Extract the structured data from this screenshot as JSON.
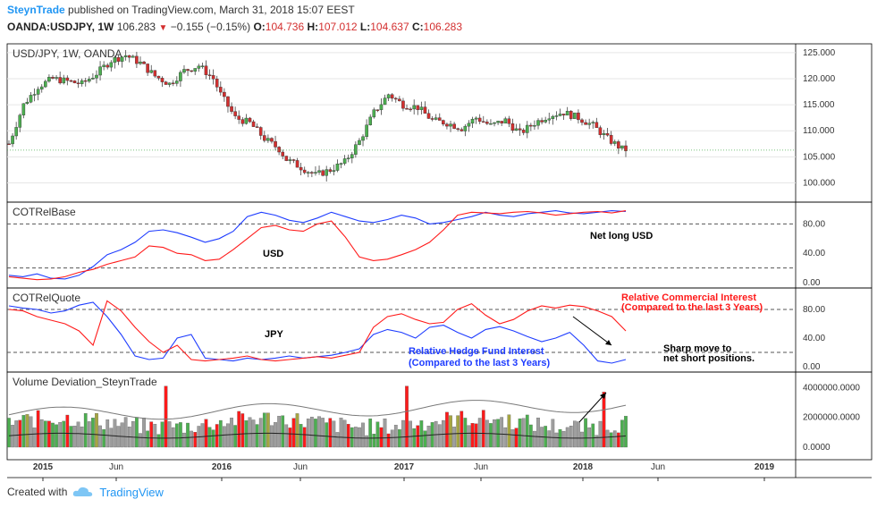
{
  "header": {
    "author": "SteynTrade",
    "published": "published on TradingView.com, March 31, 2018 15:07 EEST",
    "symbol": "OANDA:USDJPY, 1W",
    "last": "106.283",
    "change_arrow": "▼",
    "change": "−0.155 (−0.15%)",
    "o_label": "O:",
    "o_val": "104.736",
    "h_label": "H:",
    "h_val": "107.012",
    "l_label": "L:",
    "l_val": "104.637",
    "c_label": "C:",
    "c_val": "106.283"
  },
  "footer": {
    "created_with": "Created with",
    "brand": "TradingView"
  },
  "colors": {
    "up": "#4caf50",
    "down": "#d32f2f",
    "line_blue": "#1e3cff",
    "line_red": "#ff1a1a",
    "grey": "#9e9e9e",
    "olive": "#a6a641",
    "grid": "#e6e6e6"
  },
  "chart_data": [
    {
      "type": "candlestick",
      "title": "USD/JPY, 1W, OANDA",
      "ylim": [
        97,
        126
      ],
      "y_ticks": [
        "125.000",
        "120.000",
        "115.000",
        "110.000",
        "105.000",
        "100.000"
      ],
      "x_labels": [
        "2015",
        "Jun",
        "2016",
        "Jun",
        "2017",
        "Jun",
        "2018",
        "Jun",
        "2019"
      ],
      "close_path": [
        [
          0,
          107.5
        ],
        [
          4,
          115.0
        ],
        [
          8,
          118.5
        ],
        [
          12,
          120.0
        ],
        [
          16,
          119.5
        ],
        [
          20,
          119.0
        ],
        [
          24,
          121.0
        ],
        [
          28,
          123.5
        ],
        [
          32,
          124.5
        ],
        [
          36,
          123.0
        ],
        [
          40,
          120.5
        ],
        [
          44,
          119.0
        ],
        [
          48,
          121.5
        ],
        [
          52,
          122.5
        ],
        [
          56,
          120.0
        ],
        [
          58,
          117.0
        ],
        [
          62,
          112.5
        ],
        [
          66,
          111.5
        ],
        [
          70,
          108.5
        ],
        [
          74,
          106.5
        ],
        [
          76,
          104.5
        ],
        [
          80,
          103.0
        ],
        [
          84,
          101.5
        ],
        [
          88,
          102.5
        ],
        [
          92,
          104.0
        ],
        [
          96,
          108.0
        ],
        [
          100,
          113.5
        ],
        [
          104,
          117.0
        ],
        [
          108,
          115.0
        ],
        [
          112,
          114.5
        ],
        [
          116,
          112.0
        ],
        [
          120,
          111.5
        ],
        [
          124,
          110.5
        ],
        [
          128,
          112.5
        ],
        [
          132,
          111.0
        ],
        [
          136,
          112.0
        ],
        [
          140,
          109.5
        ],
        [
          144,
          111.5
        ],
        [
          148,
          113.0
        ],
        [
          152,
          113.5
        ],
        [
          156,
          112.5
        ],
        [
          160,
          111.0
        ],
        [
          164,
          108.5
        ],
        [
          168,
          106.5
        ],
        [
          170,
          106.3
        ]
      ]
    },
    {
      "type": "line",
      "title": "COTRelBase",
      "ylim": [
        0,
        100
      ],
      "y_ticks": [
        "80.00",
        "40.00",
        "0.00"
      ],
      "hlines": [
        80,
        20
      ],
      "annotations": [
        "USD",
        "Net long USD"
      ],
      "series": [
        {
          "values": [
            10,
            8,
            12,
            6,
            5,
            10,
            22,
            38,
            45,
            55,
            70,
            72,
            68,
            62,
            55,
            60,
            70,
            90,
            96,
            92,
            85,
            82,
            88,
            96,
            90,
            84,
            82,
            86,
            92,
            88,
            80,
            82,
            86,
            90,
            96,
            92,
            90,
            94,
            96,
            98,
            95,
            94,
            96,
            98,
            97
          ]
        },
        {
          "values": [
            8,
            6,
            4,
            5,
            8,
            14,
            18,
            25,
            30,
            35,
            50,
            48,
            40,
            38,
            30,
            32,
            45,
            60,
            75,
            78,
            72,
            70,
            80,
            84,
            62,
            35,
            30,
            32,
            38,
            45,
            55,
            72,
            92,
            96,
            95,
            94,
            96,
            97,
            95,
            92,
            94,
            96,
            97,
            95,
            98
          ]
        }
      ]
    },
    {
      "type": "line",
      "title": "COTRelQuote",
      "ylim": [
        0,
        100
      ],
      "y_ticks": [
        "80.00",
        "40.00",
        "0.00"
      ],
      "hlines": [
        80,
        20
      ],
      "annotations": [
        "JPY",
        "Relative Commercial Interest",
        "(Compared to the last 3 Years)",
        "Relative Hedge Fund Interest",
        "(Compared to the last 3 Years)",
        "Sharp move to",
        "net short positions."
      ],
      "series": [
        {
          "values": [
            85,
            82,
            80,
            75,
            78,
            86,
            90,
            70,
            45,
            15,
            10,
            12,
            40,
            45,
            12,
            10,
            8,
            12,
            10,
            12,
            15,
            12,
            14,
            16,
            20,
            25,
            45,
            52,
            48,
            40,
            55,
            58,
            48,
            40,
            52,
            56,
            50,
            42,
            35,
            40,
            48,
            30,
            8,
            5,
            10
          ]
        },
        {
          "values": [
            80,
            78,
            70,
            65,
            60,
            50,
            30,
            92,
            78,
            55,
            35,
            20,
            30,
            10,
            8,
            10,
            12,
            15,
            10,
            8,
            10,
            12,
            14,
            12,
            16,
            20,
            55,
            70,
            74,
            66,
            60,
            62,
            80,
            88,
            72,
            60,
            66,
            78,
            85,
            82,
            86,
            84,
            78,
            70,
            50
          ]
        }
      ]
    },
    {
      "type": "bar",
      "title": "Volume Deviation_SteynTrade",
      "ylim": [
        0,
        4200000
      ],
      "y_ticks": [
        "4000000.0000",
        "2000000.0000",
        "0.0000"
      ],
      "bar_count": 170
    }
  ]
}
